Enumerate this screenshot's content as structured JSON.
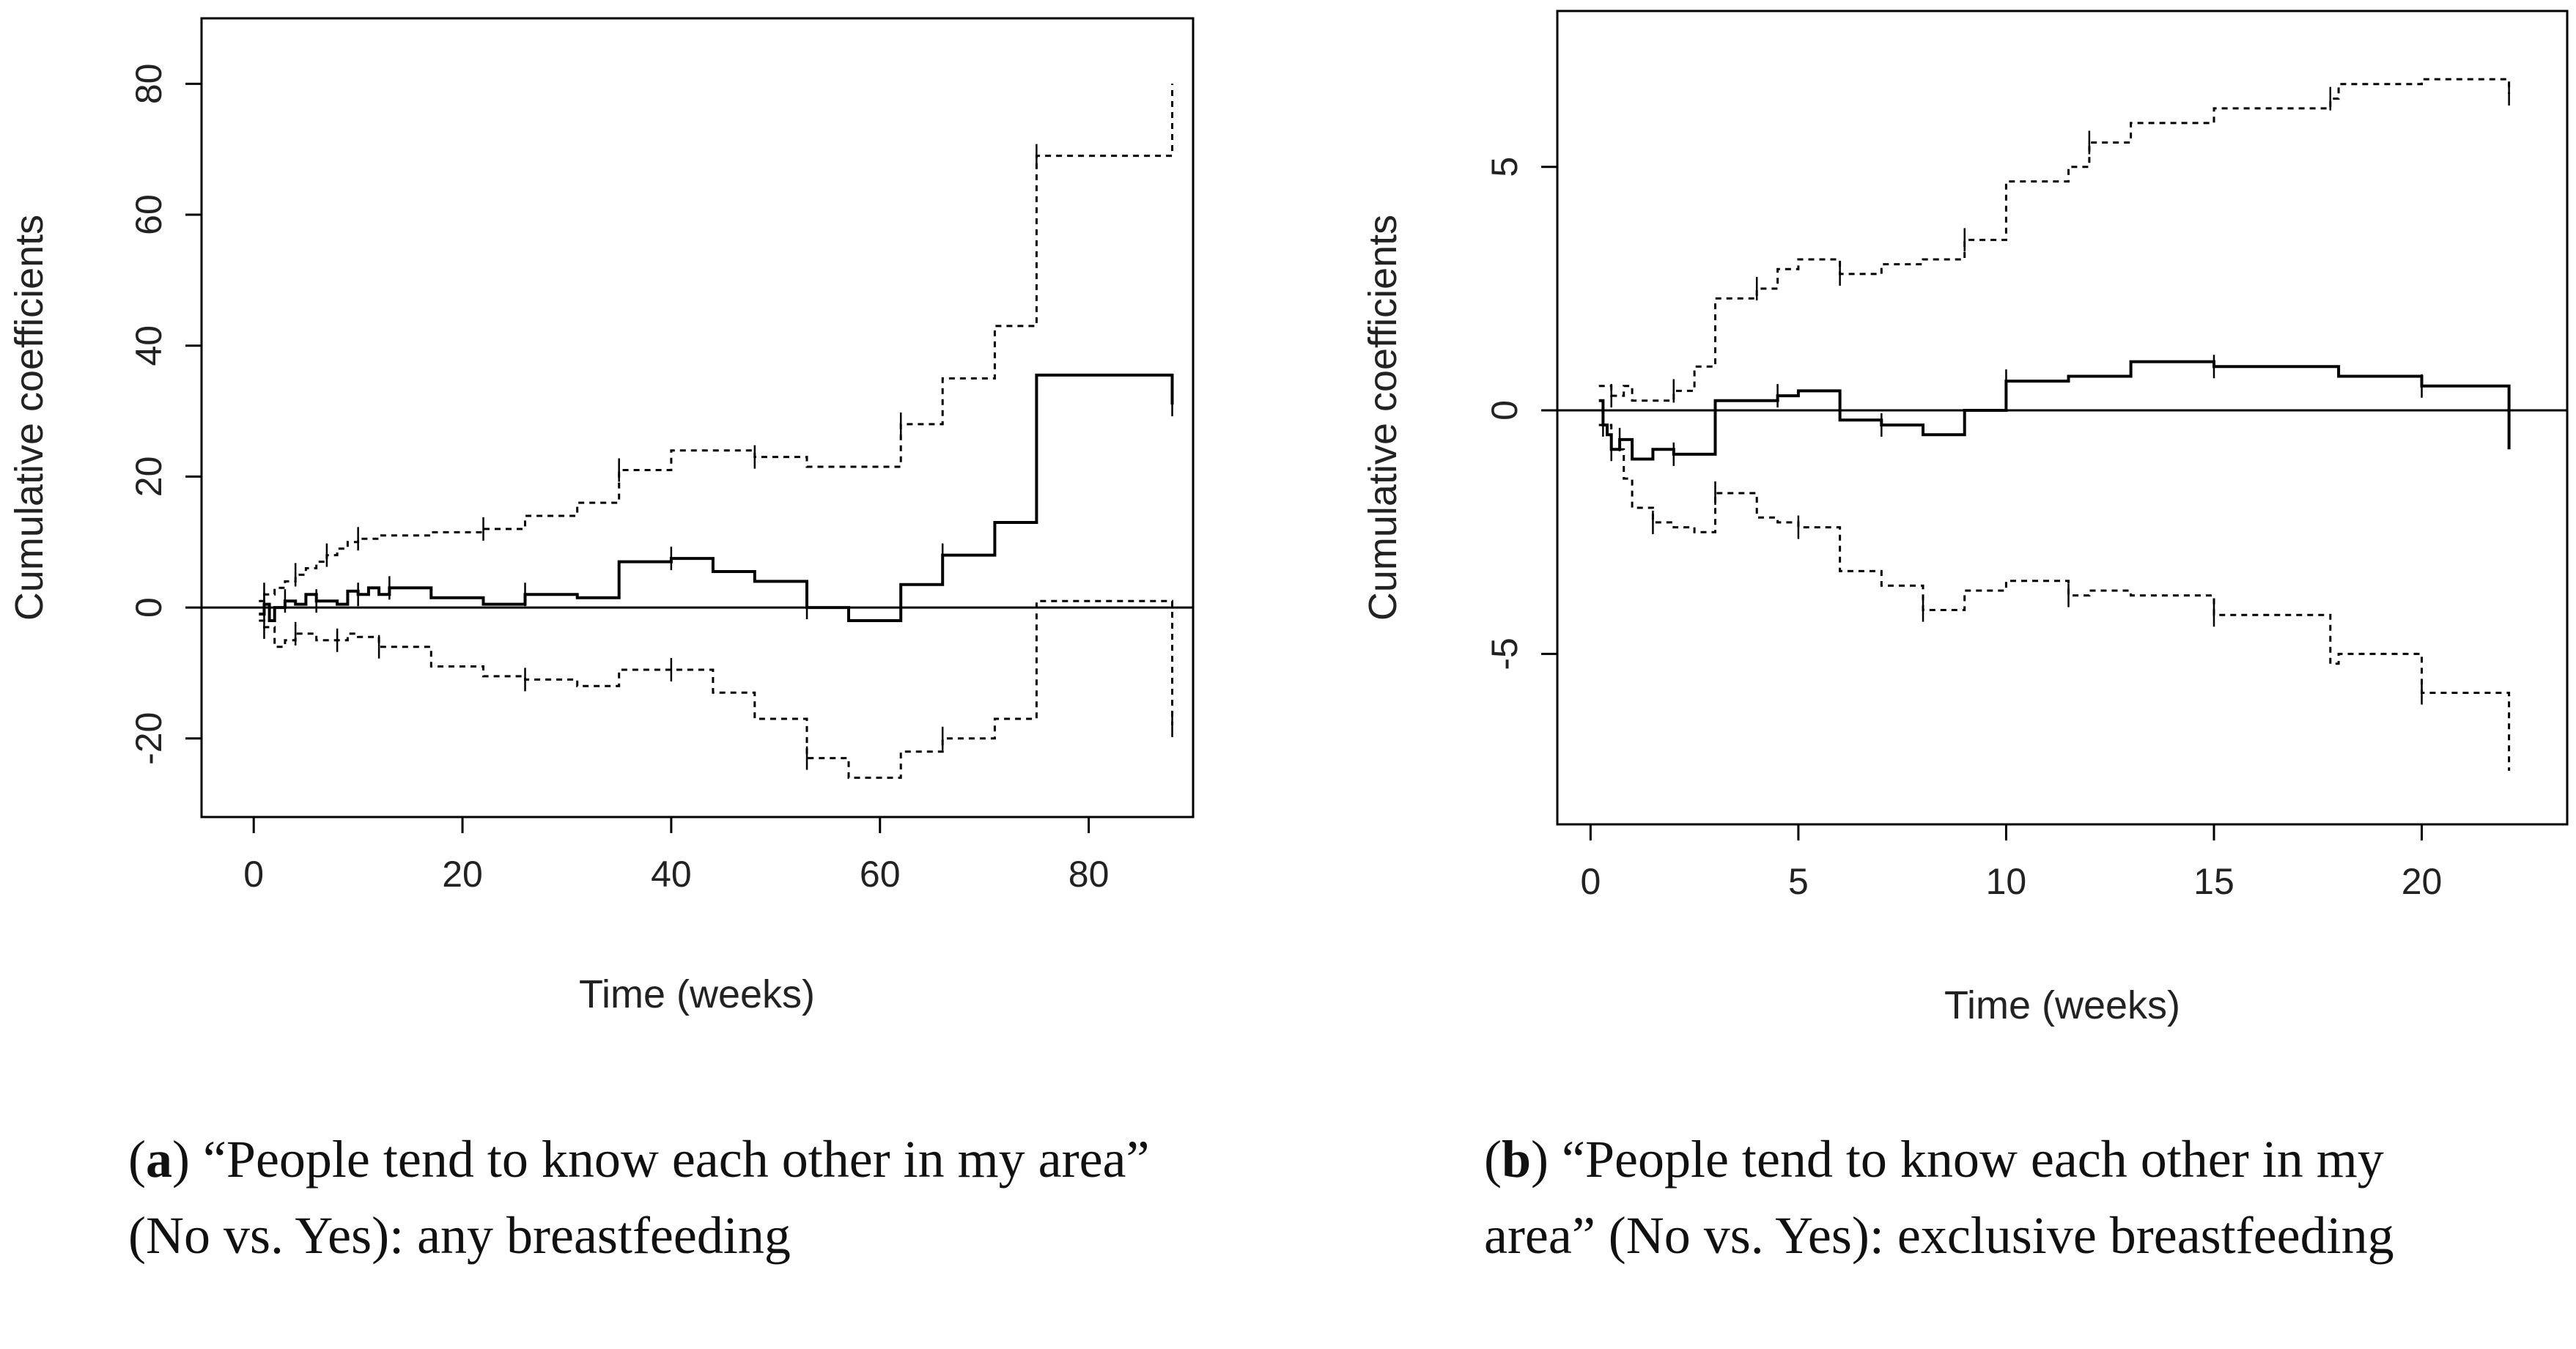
{
  "chart_data": [
    {
      "type": "line",
      "panel_letter": "a",
      "caption_text": "“People tend to know each other in my area” (No vs. Yes): any breastfeeding",
      "xlabel": "Time (weeks)",
      "ylabel": "Cumulative coefficients",
      "xlim": [
        -5,
        90
      ],
      "ylim": [
        -32,
        90
      ],
      "xticks": [
        0,
        20,
        40,
        60,
        80
      ],
      "yticks": [
        -20,
        0,
        20,
        40,
        60,
        80
      ],
      "reference_line": 0,
      "series": [
        {
          "name": "estimate",
          "style": "solid",
          "x": [
            0.5,
            1,
            1.5,
            2,
            3,
            4,
            5,
            6,
            8,
            9,
            10,
            11,
            12,
            13,
            17,
            22,
            26,
            31,
            35,
            40,
            44,
            48,
            53,
            57,
            62,
            66,
            71,
            75,
            88
          ],
          "y": [
            -1,
            0.5,
            -2,
            0,
            1,
            0.5,
            2,
            1,
            0.5,
            2.5,
            2,
            3,
            2,
            3,
            1.5,
            0.5,
            2,
            1.5,
            7,
            7.5,
            5.5,
            4,
            0,
            -2,
            3.5,
            8,
            13,
            35.5,
            31
          ]
        },
        {
          "name": "upper confidence band",
          "style": "dotted",
          "x": [
            0.5,
            1,
            2,
            3,
            4,
            5,
            6,
            7,
            8,
            9,
            10,
            12,
            17,
            22,
            26,
            31,
            35,
            40,
            44,
            48,
            53,
            57,
            62,
            66,
            71,
            75,
            88
          ],
          "y": [
            1,
            2,
            3,
            4,
            5,
            6,
            7,
            8,
            9,
            10,
            10.5,
            11,
            11.5,
            12,
            14,
            16,
            21,
            24,
            24,
            23,
            21.5,
            21.5,
            28,
            35,
            43,
            69,
            80
          ]
        },
        {
          "name": "lower confidence band",
          "style": "dotted",
          "x": [
            0.5,
            1,
            2,
            3,
            4,
            5,
            6,
            8,
            9,
            10,
            12,
            17,
            22,
            26,
            31,
            35,
            40,
            44,
            48,
            53,
            57,
            62,
            66,
            71,
            75,
            88
          ],
          "y": [
            -2,
            -3,
            -6,
            -5,
            -4,
            -4,
            -5,
            -5,
            -4,
            -4.5,
            -6,
            -9,
            -10.5,
            -11,
            -12,
            -9.5,
            -9.5,
            -13,
            -17,
            -23,
            -26,
            -22,
            -20,
            -17,
            1,
            -18
          ]
        }
      ]
    },
    {
      "type": "line",
      "panel_letter": "b",
      "caption_text": "“People tend to know each other in my area” (No vs. Yes): exclusive breastfeeding",
      "xlabel": "Time (weeks)",
      "ylabel": "Cumulative coefficients",
      "xlim": [
        -0.8,
        23.5
      ],
      "ylim": [
        -8.5,
        8.2
      ],
      "xticks": [
        0,
        5,
        10,
        15,
        20
      ],
      "yticks": [
        -5,
        0,
        5
      ],
      "reference_line": 0,
      "series": [
        {
          "name": "estimate",
          "style": "solid",
          "x": [
            0.2,
            0.3,
            0.4,
            0.5,
            0.7,
            1,
            1.5,
            2,
            3,
            4,
            4.5,
            5,
            6,
            7,
            8,
            9,
            10,
            11.5,
            13,
            15,
            17.8,
            18,
            20,
            22.1
          ],
          "y": [
            0.2,
            -0.3,
            -0.5,
            -0.8,
            -0.6,
            -1,
            -0.8,
            -0.9,
            0.2,
            0.2,
            0.3,
            0.4,
            -0.2,
            -0.3,
            -0.5,
            0,
            0.6,
            0.7,
            1,
            0.9,
            0.9,
            0.7,
            0.5,
            -0.8
          ]
        },
        {
          "name": "upper confidence band",
          "style": "dotted",
          "x": [
            0.2,
            0.5,
            0.8,
            1,
            2,
            2.5,
            3,
            4,
            4.5,
            5,
            6,
            7,
            8,
            9,
            10,
            11.5,
            12,
            13,
            15,
            17.8,
            18,
            20,
            22.1
          ],
          "y": [
            0.5,
            0.3,
            0.5,
            0.2,
            0.4,
            0.9,
            2.3,
            2.5,
            2.9,
            3.1,
            2.8,
            3,
            3.1,
            3.5,
            4.7,
            5,
            5.5,
            5.9,
            6.2,
            6.4,
            6.7,
            6.8,
            6.5
          ]
        },
        {
          "name": "lower confidence band",
          "style": "dotted",
          "x": [
            0.2,
            0.5,
            0.8,
            1,
            1.5,
            2,
            2.5,
            3,
            4,
            4.5,
            5,
            6,
            7,
            8,
            9,
            10,
            11.5,
            12,
            13,
            15,
            17.8,
            18,
            20,
            22.1
          ],
          "y": [
            -0.3,
            -0.8,
            -1.4,
            -2,
            -2.3,
            -2.4,
            -2.5,
            -1.7,
            -2.2,
            -2.3,
            -2.4,
            -3.3,
            -3.6,
            -4.1,
            -3.7,
            -3.5,
            -3.8,
            -3.7,
            -3.8,
            -4.2,
            -5.2,
            -5,
            -5.8,
            -7.4
          ]
        }
      ]
    }
  ]
}
